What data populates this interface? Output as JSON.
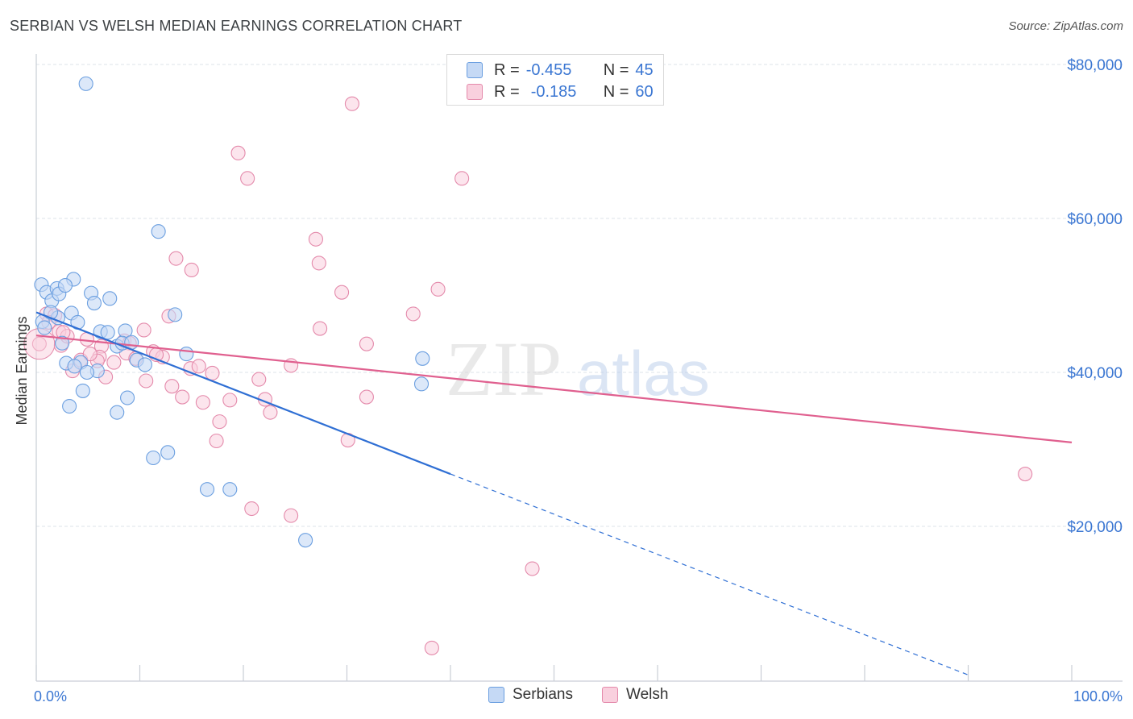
{
  "header": {
    "title": "SERBIAN VS WELSH MEDIAN EARNINGS CORRELATION CHART",
    "source": "Source: ZipAtlas.com"
  },
  "legend": {
    "serbians": {
      "r_label": "R =",
      "r_value": "-0.455",
      "n_label": "N =",
      "n_value": "45"
    },
    "welsh": {
      "r_label": "R =",
      "r_value": "-0.185",
      "n_label": "N =",
      "n_value": "60"
    }
  },
  "colors": {
    "serbians_fill": "#c5d9f5",
    "serbians_stroke": "#6b9fe0",
    "serbians_line": "#2f6fd4",
    "welsh_fill": "#f9d0de",
    "welsh_stroke": "#e48aab",
    "welsh_line": "#e0608f",
    "axis_text": "#3a76d2",
    "grid": "#dde3ea"
  },
  "watermark": {
    "zip": "ZIP",
    "atlas": "atlas"
  },
  "chart_data": {
    "type": "scatter",
    "title": "SERBIAN VS WELSH MEDIAN EARNINGS CORRELATION CHART",
    "xlabel": "",
    "ylabel": "Median Earnings",
    "xlim": [
      0,
      100
    ],
    "ylim": [
      0,
      82000
    ],
    "x_tick_labels": [
      "0.0%",
      "100.0%"
    ],
    "y_ticks": [
      20000,
      40000,
      60000,
      80000
    ],
    "y_tick_labels": [
      "$20,000",
      "$40,000",
      "$60,000",
      "$80,000"
    ],
    "grid": true,
    "legend_position": "bottom",
    "series": [
      {
        "name": "Serbians",
        "r": -0.455,
        "n": 45,
        "trend": {
          "x0": 0,
          "y0": 47800,
          "x1": 40,
          "y1": 26800,
          "dashed_to_x": 90,
          "dashed_to_y": 700
        },
        "points": [
          [
            4.8,
            77500
          ],
          [
            11.8,
            58300
          ],
          [
            0.5,
            51400
          ],
          [
            1.0,
            50400
          ],
          [
            1.5,
            49300
          ],
          [
            2.0,
            50900
          ],
          [
            3.6,
            52100
          ],
          [
            2.2,
            50200
          ],
          [
            2.8,
            51300
          ],
          [
            5.3,
            50300
          ],
          [
            7.1,
            49600
          ],
          [
            5.6,
            49000
          ],
          [
            3.4,
            47700
          ],
          [
            2.1,
            47100
          ],
          [
            0.6,
            46600
          ],
          [
            4.0,
            46500
          ],
          [
            13.4,
            47500
          ],
          [
            6.2,
            45300
          ],
          [
            6.9,
            45200
          ],
          [
            8.6,
            45400
          ],
          [
            2.5,
            43800
          ],
          [
            7.8,
            43400
          ],
          [
            8.3,
            43800
          ],
          [
            14.5,
            42400
          ],
          [
            9.7,
            41600
          ],
          [
            2.9,
            41200
          ],
          [
            4.3,
            41300
          ],
          [
            3.7,
            40800
          ],
          [
            5.9,
            40200
          ],
          [
            10.5,
            41000
          ],
          [
            4.9,
            40000
          ],
          [
            37.3,
            41800
          ],
          [
            37.2,
            38500
          ],
          [
            4.5,
            37600
          ],
          [
            8.8,
            36700
          ],
          [
            3.2,
            35600
          ],
          [
            7.8,
            34800
          ],
          [
            12.7,
            29600
          ],
          [
            11.3,
            28900
          ],
          [
            16.5,
            24800
          ],
          [
            18.7,
            24800
          ],
          [
            26.0,
            18200
          ],
          [
            0.8,
            45800
          ],
          [
            1.4,
            47800
          ],
          [
            9.2,
            43900
          ]
        ]
      },
      {
        "name": "Welsh",
        "r": -0.185,
        "n": 60,
        "trend": {
          "x0": 0,
          "y0": 44800,
          "x1": 100,
          "y1": 30900
        },
        "points": [
          [
            30.5,
            74900
          ],
          [
            19.5,
            68500
          ],
          [
            20.4,
            65200
          ],
          [
            41.1,
            65200
          ],
          [
            27.0,
            57300
          ],
          [
            13.5,
            54800
          ],
          [
            15.0,
            53300
          ],
          [
            27.3,
            54200
          ],
          [
            38.8,
            50800
          ],
          [
            29.5,
            50400
          ],
          [
            36.4,
            47600
          ],
          [
            12.8,
            47300
          ],
          [
            27.4,
            45700
          ],
          [
            10.4,
            45500
          ],
          [
            1.0,
            47600
          ],
          [
            1.8,
            47400
          ],
          [
            2.2,
            45300
          ],
          [
            31.9,
            43700
          ],
          [
            8.5,
            44100
          ],
          [
            9.0,
            43800
          ],
          [
            2.4,
            43500
          ],
          [
            4.9,
            44300
          ],
          [
            6.3,
            43400
          ],
          [
            8.7,
            42500
          ],
          [
            11.3,
            42700
          ],
          [
            12.2,
            42000
          ],
          [
            6.1,
            42000
          ],
          [
            4.3,
            41600
          ],
          [
            5.9,
            41500
          ],
          [
            7.5,
            41300
          ],
          [
            24.6,
            40900
          ],
          [
            14.9,
            40500
          ],
          [
            15.7,
            40800
          ],
          [
            17.0,
            39900
          ],
          [
            3.5,
            40200
          ],
          [
            6.7,
            39400
          ],
          [
            21.5,
            39100
          ],
          [
            10.6,
            38900
          ],
          [
            13.1,
            38200
          ],
          [
            14.1,
            36800
          ],
          [
            31.9,
            36800
          ],
          [
            16.1,
            36100
          ],
          [
            18.7,
            36400
          ],
          [
            22.1,
            36500
          ],
          [
            22.6,
            34800
          ],
          [
            17.7,
            33600
          ],
          [
            17.4,
            31100
          ],
          [
            30.1,
            31200
          ],
          [
            95.5,
            26800
          ],
          [
            20.8,
            22300
          ],
          [
            24.6,
            21400
          ],
          [
            47.9,
            14500
          ],
          [
            38.2,
            4200
          ],
          [
            0.3,
            43700
          ],
          [
            1.2,
            46500
          ],
          [
            3.0,
            44700
          ],
          [
            5.2,
            42400
          ],
          [
            9.6,
            41800
          ],
          [
            11.6,
            42300
          ],
          [
            2.6,
            45200
          ]
        ]
      }
    ]
  },
  "bottom_legend": {
    "serbians_label": "Serbians",
    "welsh_label": "Welsh"
  }
}
